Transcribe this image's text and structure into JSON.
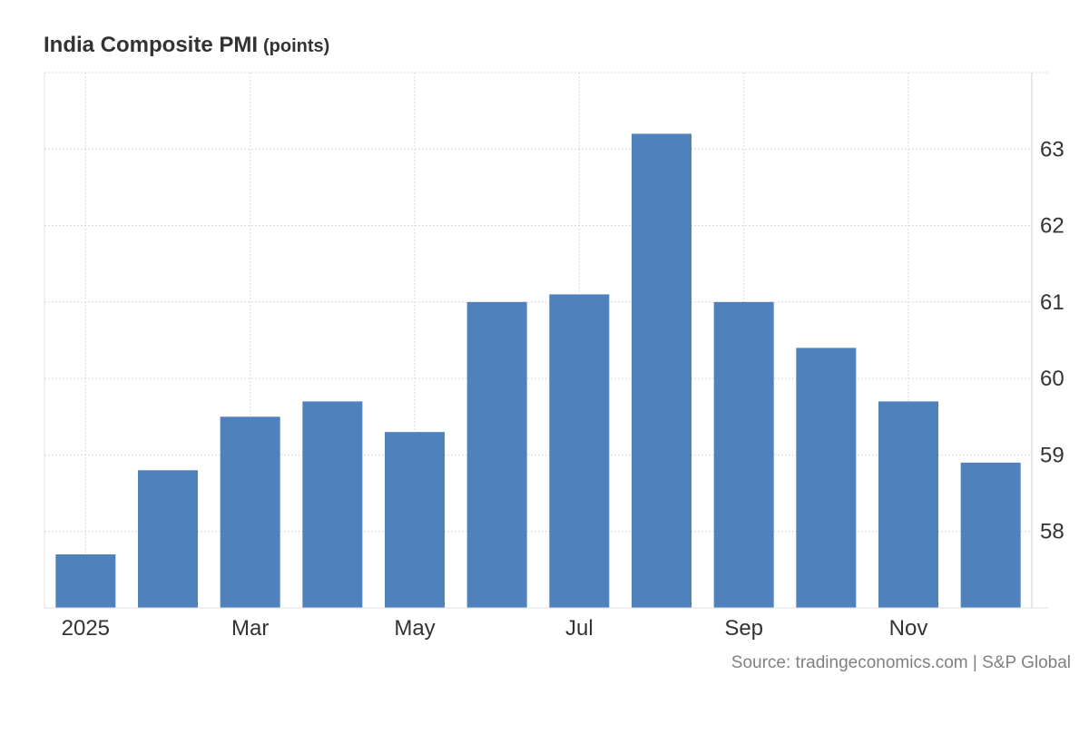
{
  "title": "India Composite PMI",
  "unit": "(points)",
  "source": "Source: tradingeconomics.com | S&P Global",
  "colors": {
    "bar": "#4f81bd",
    "grid": "#d9d9d9",
    "text": "#333333",
    "source": "#808080"
  },
  "chart_data": {
    "type": "bar",
    "categories": [
      "Jan 2025",
      "Feb 2025",
      "Mar 2025",
      "Apr 2025",
      "May 2025",
      "Jun 2025",
      "Jul 2025",
      "Aug 2025",
      "Sep 2025",
      "Oct 2025",
      "Nov 2025",
      "Dec 2025"
    ],
    "values": [
      57.7,
      58.8,
      59.5,
      59.7,
      59.3,
      61.0,
      61.1,
      63.2,
      61.0,
      60.4,
      59.7,
      58.9
    ],
    "title": "India Composite PMI",
    "unit": "points",
    "x_tick_labels": [
      {
        "label": "2025",
        "index": 0
      },
      {
        "label": "Mar",
        "index": 2
      },
      {
        "label": "May",
        "index": 4
      },
      {
        "label": "Jul",
        "index": 6
      },
      {
        "label": "Sep",
        "index": 8
      },
      {
        "label": "Nov",
        "index": 10
      }
    ],
    "y_ticks": [
      58,
      59,
      60,
      61,
      62,
      63
    ],
    "ylim": [
      57.0,
      64.0
    ],
    "y_axis_side": "right",
    "grid": true
  }
}
